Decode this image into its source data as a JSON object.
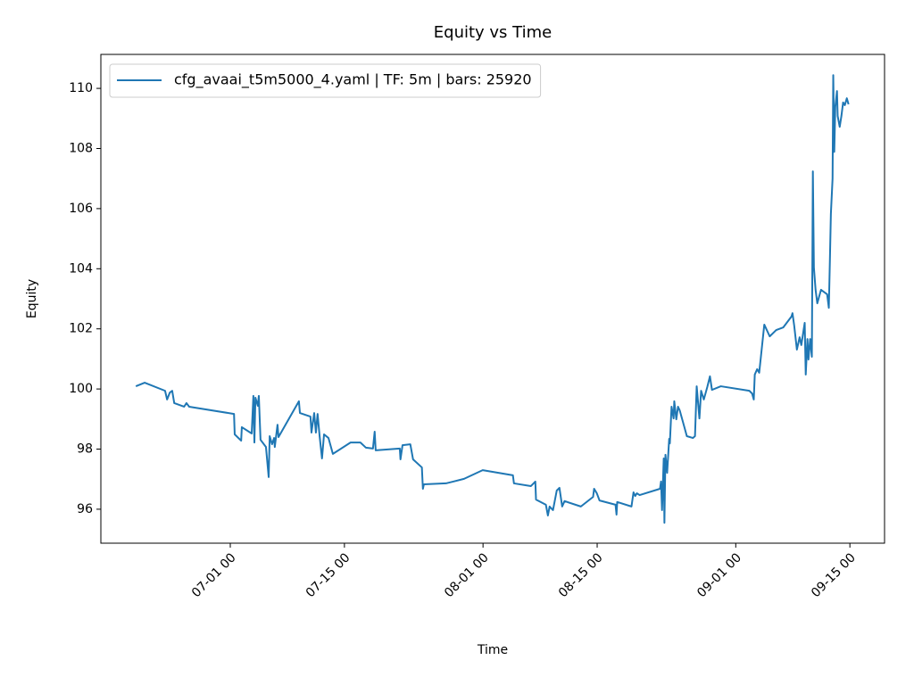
{
  "chart_data": {
    "type": "line",
    "title": "Equity vs Time",
    "xlabel": "Time",
    "ylabel": "Equity",
    "x": [
      "06-19 10",
      "06-20 12",
      "06-23 00",
      "06-23 06",
      "06-23 14",
      "06-23 21",
      "06-24 03",
      "06-25 08",
      "06-25 15",
      "06-25 23",
      "06-26 15",
      "07-01 11",
      "07-01 13",
      "07-02 08",
      "07-02 10",
      "07-03 15",
      "07-03 20",
      "07-03 23",
      "07-04 02",
      "07-04 09",
      "07-04 12",
      "07-04 17",
      "07-05 09",
      "07-05 17",
      "07-05 20",
      "07-06 03",
      "07-06 09",
      "07-06 11",
      "07-06 19",
      "07-06 22",
      "07-09 10",
      "07-09 13",
      "07-10 20",
      "07-10 23",
      "07-11 07",
      "07-11 12",
      "07-11 17",
      "07-11 23",
      "07-12 06",
      "07-12 12",
      "07-13 01",
      "07-13 14",
      "07-15 18",
      "07-16 23",
      "07-17 15",
      "07-18 12",
      "07-18 17",
      "07-18 20",
      "07-21 19",
      "07-21 21",
      "07-22 03",
      "07-23 02",
      "07-23 10",
      "07-24 12",
      "07-24 15",
      "07-24 18",
      "07-27 11",
      "07-29 16",
      "07-31 23",
      "08-04 16",
      "08-04 19",
      "08-06 21",
      "08-07 10",
      "08-07 12",
      "08-08 17",
      "08-08 23",
      "08-09 04",
      "08-09 14",
      "08-10 01",
      "08-10 09",
      "08-10 17",
      "08-11 00",
      "08-13 00",
      "08-14 12",
      "08-14 15",
      "08-14 23",
      "08-15 07",
      "08-17 06",
      "08-17 09",
      "08-17 11",
      "08-19 05",
      "08-19 11",
      "08-19 16",
      "08-19 21",
      "08-20 05",
      "08-22 17",
      "08-22 20",
      "08-22 23",
      "08-23 04",
      "08-23 06",
      "08-23 09",
      "08-23 14",
      "08-23 20",
      "08-23 22",
      "08-24 03",
      "08-24 09",
      "08-24 11",
      "08-24 17",
      "08-24 22",
      "08-25 03",
      "08-25 16",
      "08-26 00",
      "08-26 18",
      "08-27 00",
      "08-27 05",
      "08-27 13",
      "08-27 18",
      "08-28 02",
      "08-28 12",
      "08-28 20",
      "08-29 02",
      "08-30 04",
      "09-02 16",
      "09-03 00",
      "09-03 05",
      "09-03 08",
      "09-03 15",
      "09-03 21",
      "09-04 02",
      "09-04 12",
      "09-05 04",
      "09-05 23",
      "09-06 20",
      "09-07 20",
      "09-07 23",
      "09-08 04",
      "09-08 12",
      "09-08 20",
      "09-09 01",
      "09-09 11",
      "09-09 14",
      "09-09 19",
      "09-09 22",
      "09-10 03",
      "09-10 08",
      "09-10 11",
      "09-10 14",
      "09-10 19",
      "09-11 00",
      "09-11 11",
      "09-12 05",
      "09-12 10",
      "09-12 13",
      "09-12 16",
      "09-12 21",
      "09-12 23",
      "09-13 02",
      "09-13 05",
      "09-13 10",
      "09-13 12",
      "09-13 18",
      "09-13 23",
      "09-14 04",
      "09-14 09",
      "09-14 15",
      "09-14 20"
    ],
    "series": [
      {
        "name": "cfg_avaai_t5m5000_4.yaml | TF: 5m | bars: 25920",
        "color": "#1f77b4",
        "values": [
          100.09,
          100.21,
          99.94,
          99.65,
          99.88,
          99.94,
          99.53,
          99.41,
          99.53,
          99.41,
          99.38,
          99.17,
          98.49,
          98.28,
          98.73,
          98.52,
          99.77,
          98.22,
          99.71,
          99.44,
          99.77,
          98.31,
          98.07,
          97.07,
          98.43,
          98.16,
          98.37,
          98.07,
          98.81,
          98.4,
          99.59,
          99.2,
          99.08,
          98.55,
          99.2,
          98.55,
          99.17,
          98.43,
          97.69,
          98.49,
          98.37,
          97.84,
          98.22,
          98.22,
          98.05,
          98.02,
          98.58,
          97.96,
          98.02,
          97.66,
          98.13,
          98.16,
          97.66,
          97.39,
          96.68,
          96.83,
          96.86,
          97.01,
          97.3,
          97.13,
          96.86,
          96.77,
          96.92,
          96.32,
          96.15,
          95.79,
          96.09,
          95.97,
          96.62,
          96.71,
          96.09,
          96.27,
          96.09,
          96.41,
          96.68,
          96.53,
          96.29,
          96.15,
          95.82,
          96.24,
          96.09,
          96.56,
          96.44,
          96.53,
          96.47,
          96.68,
          96.92,
          95.97,
          97.69,
          95.55,
          97.81,
          97.21,
          98.34,
          98.19,
          99.41,
          99.02,
          99.59,
          98.99,
          99.41,
          99.29,
          98.76,
          98.43,
          98.37,
          98.43,
          100.09,
          99.02,
          99.94,
          99.65,
          100.06,
          100.42,
          99.97,
          100.09,
          99.94,
          99.85,
          99.65,
          100.48,
          100.66,
          100.54,
          101.07,
          102.14,
          101.75,
          101.96,
          102.05,
          102.41,
          102.52,
          102.11,
          101.31,
          101.72,
          101.46,
          102.2,
          100.48,
          101.66,
          100.98,
          101.66,
          101.07,
          107.24,
          104.04,
          103.3,
          102.85,
          103.3,
          103.15,
          102.7,
          104.22,
          105.82,
          107.0,
          110.44,
          107.89,
          109.38,
          109.91,
          109.08,
          108.72,
          109.08,
          109.53,
          109.44,
          109.67,
          109.47
        ]
      }
    ],
    "xlim": [
      "06-15 03",
      "09-19 06"
    ],
    "xticks": [
      "07-01 00",
      "07-15 00",
      "08-01 00",
      "08-15 00",
      "09-01 00",
      "09-15 00"
    ],
    "ylim": [
      94.87,
      111.13
    ],
    "yticks": [
      96,
      98,
      100,
      102,
      104,
      106,
      108,
      110
    ],
    "legend": "upper left"
  }
}
